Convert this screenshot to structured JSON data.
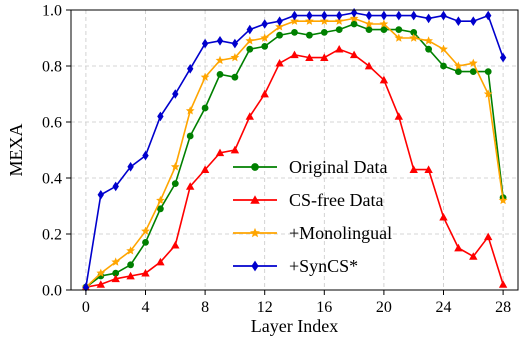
{
  "chart_data": {
    "type": "line",
    "title": "",
    "xlabel": "Layer Index",
    "ylabel": "MEXA",
    "xlim": [
      -1,
      29
    ],
    "ylim": [
      0.0,
      1.0
    ],
    "xticks": [
      0,
      4,
      8,
      12,
      16,
      20,
      24,
      28
    ],
    "yticks": [
      0.0,
      0.2,
      0.4,
      0.6,
      0.8,
      1.0
    ],
    "xtick_labels": [
      "0",
      "4",
      "8",
      "12",
      "16",
      "20",
      "24",
      "28"
    ],
    "ytick_labels": [
      "0.0",
      "0.2",
      "0.4",
      "0.6",
      "0.8",
      "1.0"
    ],
    "grid": true,
    "legend_position": "center",
    "x": [
      0,
      1,
      2,
      3,
      4,
      5,
      6,
      7,
      8,
      9,
      10,
      11,
      12,
      13,
      14,
      15,
      16,
      17,
      18,
      19,
      20,
      21,
      22,
      23,
      24,
      25,
      26,
      27,
      28
    ],
    "series": [
      {
        "name": "Original Data",
        "color": "#008000",
        "marker": "circle",
        "values": [
          0.01,
          0.05,
          0.06,
          0.09,
          0.17,
          0.29,
          0.38,
          0.55,
          0.65,
          0.77,
          0.76,
          0.86,
          0.87,
          0.91,
          0.92,
          0.91,
          0.92,
          0.93,
          0.95,
          0.93,
          0.93,
          0.93,
          0.92,
          0.86,
          0.8,
          0.78,
          0.78,
          0.78,
          0.33
        ]
      },
      {
        "name": "CS-free Data",
        "color": "#ff0000",
        "marker": "triangle",
        "values": [
          0.01,
          0.02,
          0.04,
          0.05,
          0.06,
          0.1,
          0.16,
          0.37,
          0.43,
          0.49,
          0.5,
          0.62,
          0.7,
          0.81,
          0.84,
          0.83,
          0.83,
          0.86,
          0.84,
          0.8,
          0.75,
          0.62,
          0.43,
          0.43,
          0.26,
          0.15,
          0.12,
          0.19,
          0.02
        ]
      },
      {
        "name": "+Monolingual",
        "color": "#ffa500",
        "marker": "star",
        "values": [
          0.01,
          0.06,
          0.1,
          0.14,
          0.21,
          0.32,
          0.44,
          0.64,
          0.76,
          0.82,
          0.83,
          0.89,
          0.9,
          0.94,
          0.96,
          0.96,
          0.96,
          0.96,
          0.97,
          0.95,
          0.95,
          0.9,
          0.9,
          0.89,
          0.86,
          0.8,
          0.81,
          0.7,
          0.32
        ]
      },
      {
        "name": "+SynCS*",
        "color": "#0000cd",
        "marker": "diamond",
        "values": [
          0.01,
          0.34,
          0.37,
          0.44,
          0.48,
          0.62,
          0.7,
          0.79,
          0.88,
          0.89,
          0.88,
          0.93,
          0.95,
          0.96,
          0.98,
          0.98,
          0.98,
          0.98,
          0.99,
          0.98,
          0.98,
          0.98,
          0.98,
          0.97,
          0.98,
          0.96,
          0.96,
          0.98,
          0.83
        ]
      }
    ]
  }
}
